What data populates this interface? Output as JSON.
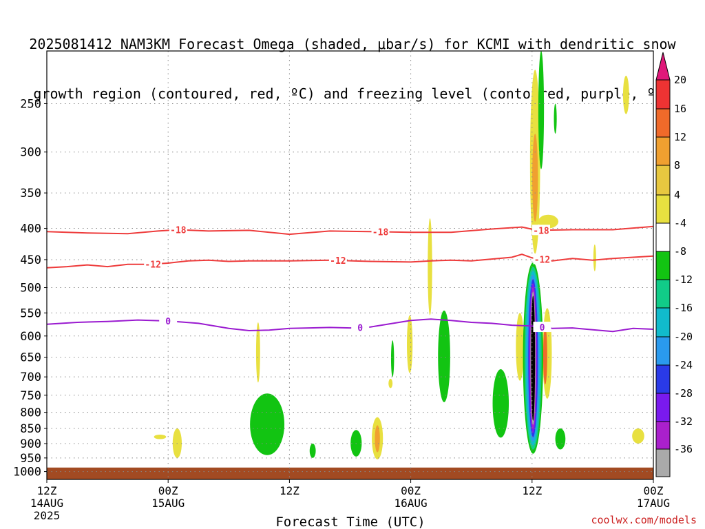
{
  "title": {
    "line1": "2025081412 NAM3KM Forecast Omega (shaded, μbar/s) for KCMI with dendritic snow",
    "line2": "growth region (contoured, red, ºC) and freezing level (contoured, purple, ºC)"
  },
  "credit": "coolwx.com/models",
  "chart_data": {
    "type": "time-height",
    "xlabel": "Forecast Time (UTC)",
    "x_ticks": [
      {
        "hour": 0,
        "lines": [
          "12Z",
          "14AUG",
          "2025"
        ]
      },
      {
        "hour": 12,
        "lines": [
          "00Z",
          "15AUG"
        ]
      },
      {
        "hour": 24,
        "lines": [
          "12Z"
        ]
      },
      {
        "hour": 36,
        "lines": [
          "00Z",
          "16AUG"
        ]
      },
      {
        "hour": 48,
        "lines": [
          "12Z"
        ]
      },
      {
        "hour": 60,
        "lines": [
          "00Z",
          "17AUG"
        ]
      }
    ],
    "xlim_hours": [
      0,
      60
    ],
    "ylabel": "",
    "y_scale": "log-pressure",
    "ylim_hpa": [
      1030,
      205
    ],
    "y_ticks": [
      250,
      300,
      350,
      400,
      450,
      500,
      550,
      600,
      650,
      700,
      750,
      800,
      850,
      900,
      950,
      1000
    ],
    "grid": true,
    "ground_level_hpa": 985,
    "colorbar": {
      "labels": [
        "20",
        "16",
        "12",
        "8",
        "4",
        "-4",
        "-8",
        "-12",
        "-16",
        "-20",
        "-24",
        "-28",
        "-32",
        "-36"
      ],
      "levels": [
        20,
        16,
        12,
        8,
        4,
        -4,
        -8,
        -12,
        -16,
        -20,
        -24,
        -28,
        -32,
        -36
      ],
      "colors": [
        "#e0197a",
        "#ee3333",
        "#f06a2a",
        "#f0a030",
        "#e8c840",
        "#e8e040",
        "#ffffff",
        "#12c412",
        "#11cc88",
        "#11bbcc",
        "#2a9aee",
        "#2a3ae8",
        "#7a1aee",
        "#aa20cc",
        "#aaaaaa",
        "#000000"
      ]
    },
    "contours": [
      {
        "name": "-18",
        "color": "#ee3b3b",
        "value": -18,
        "label_hours": [
          13,
          33,
          48.9
        ],
        "points": [
          [
            0,
            405
          ],
          [
            4,
            407
          ],
          [
            8,
            408
          ],
          [
            11,
            404
          ],
          [
            13,
            402
          ],
          [
            16,
            404
          ],
          [
            20,
            403
          ],
          [
            24,
            409
          ],
          [
            28,
            404
          ],
          [
            32,
            405
          ],
          [
            36,
            406
          ],
          [
            40,
            406
          ],
          [
            44,
            401
          ],
          [
            47,
            398
          ],
          [
            48.5,
            403
          ],
          [
            52,
            402
          ],
          [
            56,
            402
          ],
          [
            60,
            397
          ]
        ]
      },
      {
        "name": "-12",
        "color": "#ee3b3b",
        "value": -12,
        "label_hours": [
          10.5,
          28.8,
          49
        ]
      },
      {
        "name": "0",
        "color": "#9a1ad0",
        "value": 0,
        "label_hours": [
          12,
          31,
          49
        ]
      }
    ],
    "contour_series": {
      "-12": [
        [
          0,
          464
        ],
        [
          2,
          462
        ],
        [
          4,
          459
        ],
        [
          6,
          462
        ],
        [
          8,
          458
        ],
        [
          10,
          458
        ],
        [
          12,
          456
        ],
        [
          14,
          452
        ],
        [
          16,
          451
        ],
        [
          18,
          453
        ],
        [
          20,
          452
        ],
        [
          24,
          452
        ],
        [
          28,
          451
        ],
        [
          32,
          453
        ],
        [
          36,
          454
        ],
        [
          38,
          452
        ],
        [
          40,
          451
        ],
        [
          42,
          452
        ],
        [
          44,
          449
        ],
        [
          46,
          446
        ],
        [
          47,
          441
        ],
        [
          48,
          447
        ],
        [
          50,
          452
        ],
        [
          52,
          448
        ],
        [
          54,
          451
        ],
        [
          56,
          448
        ],
        [
          58,
          446
        ],
        [
          60,
          444
        ]
      ],
      "0": [
        [
          0,
          574
        ],
        [
          3,
          570
        ],
        [
          6,
          568
        ],
        [
          9,
          565
        ],
        [
          12,
          567
        ],
        [
          15,
          572
        ],
        [
          18,
          583
        ],
        [
          20,
          588
        ],
        [
          22,
          587
        ],
        [
          24,
          583
        ],
        [
          26,
          582
        ],
        [
          28,
          581
        ],
        [
          30,
          582
        ],
        [
          32,
          580
        ],
        [
          34,
          573
        ],
        [
          36,
          566
        ],
        [
          38,
          563
        ],
        [
          40,
          566
        ],
        [
          42,
          570
        ],
        [
          44,
          572
        ],
        [
          46,
          576
        ],
        [
          48,
          578
        ],
        [
          50,
          583
        ],
        [
          52,
          582
        ],
        [
          54,
          586
        ],
        [
          56,
          590
        ],
        [
          58,
          583
        ],
        [
          60,
          585
        ]
      ]
    },
    "shaded_regions": [
      {
        "level": "4..8",
        "center_hour": 11.2,
        "hpa": [
          870,
          885
        ],
        "hw": 0.6
      },
      {
        "level": "4..8",
        "center_hour": 12.9,
        "hpa": [
          850,
          950
        ],
        "hw": 0.45
      },
      {
        "level": "4..8",
        "center_hour": 20.9,
        "hpa": [
          570,
          715
        ],
        "hw": 0.2
      },
      {
        "level": "4..8",
        "center_hour": 34.0,
        "hpa": [
          705,
          730
        ],
        "hw": 0.2
      },
      {
        "level": "4..8",
        "center_hour": 35.9,
        "hpa": [
          555,
          690
        ],
        "hw": 0.28
      },
      {
        "level": "4..8",
        "center_hour": 37.9,
        "hpa": [
          385,
          555
        ],
        "hw": 0.22
      },
      {
        "level": "4..8",
        "center_hour": 46.8,
        "hpa": [
          550,
          710
        ],
        "hw": 0.4
      },
      {
        "level": "4..8",
        "center_hour": 48.3,
        "hpa": [
          220,
          440
        ],
        "hw": 0.5
      },
      {
        "level": "4..8",
        "center_hour": 49.6,
        "hpa": [
          380,
          400
        ],
        "hw": 1.0
      },
      {
        "level": "4..8",
        "center_hour": 49.5,
        "hpa": [
          540,
          760
        ],
        "hw": 0.45
      },
      {
        "level": "4..8",
        "center_hour": 54.2,
        "hpa": [
          425,
          470
        ],
        "hw": 0.12
      },
      {
        "level": "4..8",
        "center_hour": 57.3,
        "hpa": [
          225,
          260
        ],
        "hw": 0.3
      },
      {
        "level": "4..8",
        "center_hour": 58.5,
        "hpa": [
          850,
          900
        ],
        "hw": 0.6
      },
      {
        "level": "4..8",
        "center_hour": 32.7,
        "hpa": [
          815,
          955
        ],
        "hw": 0.55
      },
      {
        "level": "8..12",
        "center_hour": 32.7,
        "hpa": [
          840,
          930
        ],
        "hw": 0.25
      },
      {
        "level": "8..12",
        "center_hour": 48.3,
        "hpa": [
          280,
          390
        ],
        "hw": 0.28
      },
      {
        "level": "12..16",
        "center_hour": 49.3,
        "hpa": [
          580,
          720
        ],
        "hw": 0.2
      },
      {
        "level": "-4..-8",
        "center_hour": 21.8,
        "hpa": [
          745,
          940
        ],
        "hw": 1.7
      },
      {
        "level": "-4..-8",
        "center_hour": 26.3,
        "hpa": [
          900,
          950
        ],
        "hw": 0.3
      },
      {
        "level": "-4..-8",
        "center_hour": 30.6,
        "hpa": [
          855,
          945
        ],
        "hw": 0.55
      },
      {
        "level": "-4..-8",
        "center_hour": 34.2,
        "hpa": [
          610,
          700
        ],
        "hw": 0.15
      },
      {
        "level": "-4..-8",
        "center_hour": 39.3,
        "hpa": [
          545,
          770
        ],
        "hw": 0.6
      },
      {
        "level": "-4..-8",
        "center_hour": 44.9,
        "hpa": [
          680,
          880
        ],
        "hw": 0.8
      },
      {
        "level": "-4..-8",
        "center_hour": 48.9,
        "hpa": [
          205,
          320
        ],
        "hw": 0.28
      },
      {
        "level": "-4..-8",
        "center_hour": 50.3,
        "hpa": [
          250,
          280
        ],
        "hw": 0.14
      },
      {
        "level": "-4..-8",
        "center_hour": 50.8,
        "hpa": [
          850,
          920
        ],
        "hw": 0.5
      }
    ],
    "omega_core": {
      "center_hour": 48.1,
      "hpa": [
        455,
        935
      ],
      "layers": [
        {
          "level": "-4..-8",
          "hw": 1.0
        },
        {
          "level": "-8..-12",
          "hw": 0.85
        },
        {
          "level": "-12..-16",
          "hw": 0.72
        },
        {
          "level": "-16..-20",
          "hw": 0.6
        },
        {
          "level": "-20..-24",
          "hw": 0.48
        },
        {
          "level": "-24..-28",
          "hw": 0.4
        },
        {
          "level": "-28..-32",
          "hw": 0.33
        },
        {
          "level": "-32..-36",
          "hw": 0.26
        },
        {
          "level": "<-36",
          "hw": 0.2
        }
      ]
    },
    "colors": {
      "ground": "#a24a22",
      "grid": "#888888"
    }
  }
}
